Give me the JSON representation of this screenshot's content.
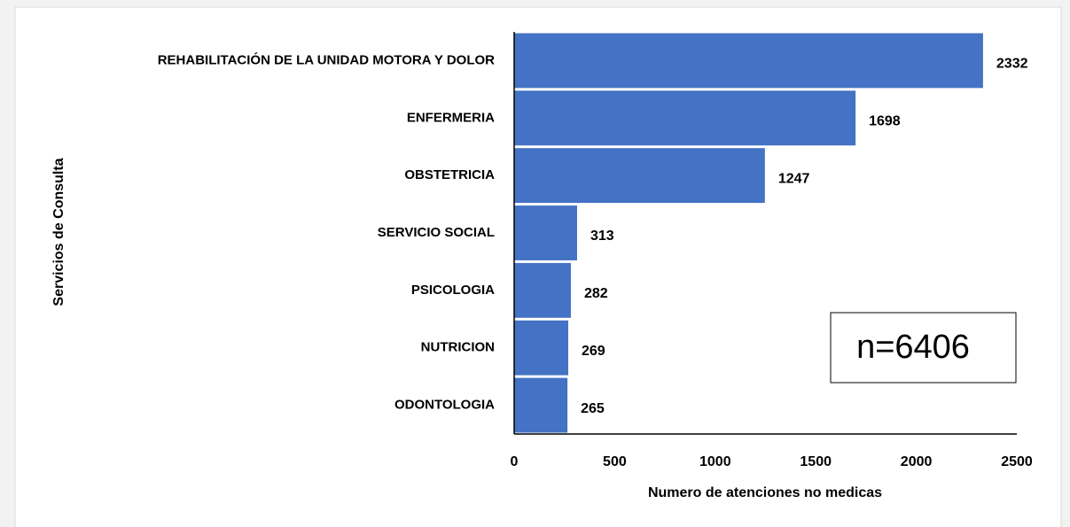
{
  "chart_data": {
    "type": "bar",
    "orientation": "horizontal",
    "categories": [
      "REHABILITACIÓN DE LA UNIDAD MOTORA Y DOLOR",
      "ENFERMERIA",
      "OBSTETRICIA",
      "SERVICIO SOCIAL",
      "PSICOLOGIA",
      "NUTRICION",
      "ODONTOLOGIA"
    ],
    "values": [
      2332,
      1698,
      1247,
      313,
      282,
      269,
      265
    ],
    "color": "#4472c4",
    "xlim": [
      0,
      2500
    ],
    "xticks": [
      0,
      500,
      1000,
      1500,
      2000,
      2500
    ],
    "x_label": "Numero de atenciones no medicas",
    "y_label": "Servicios de Consulta",
    "annotation": "n=6406"
  }
}
